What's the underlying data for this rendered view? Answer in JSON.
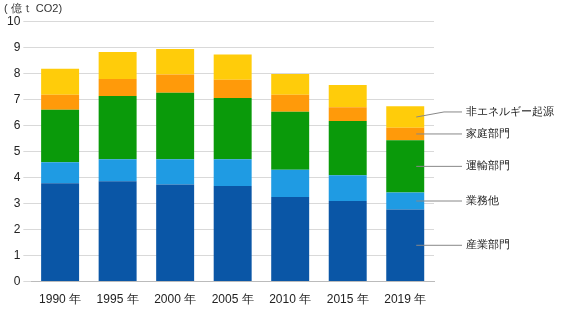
{
  "chart_data": {
    "type": "bar",
    "stacked": true,
    "grid": true,
    "y_label": "( 億ｔ CO2)",
    "categories": [
      "1990 年",
      "1995 年",
      "2000 年",
      "2005 年",
      "2010 年",
      "2015 年",
      "2019 年"
    ],
    "ylim": [
      0,
      10
    ],
    "yticks": [
      0,
      1,
      2,
      3,
      4,
      5,
      6,
      7,
      8,
      9,
      10
    ],
    "series": [
      {
        "name": "産業部門",
        "color": "#0a56a6",
        "values": [
          3.78,
          3.85,
          3.73,
          3.67,
          3.25,
          3.1,
          2.77
        ]
      },
      {
        "name": "業務他",
        "color": "#1f9be3",
        "values": [
          0.8,
          0.85,
          0.97,
          1.03,
          1.05,
          0.98,
          0.65
        ]
      },
      {
        "name": "運輸部門",
        "color": "#0a9a0a",
        "values": [
          2.02,
          2.43,
          2.55,
          2.35,
          2.22,
          2.09,
          2.01
        ]
      },
      {
        "name": "家庭部門",
        "color": "#ff9a0a",
        "values": [
          0.58,
          0.65,
          0.7,
          0.7,
          0.66,
          0.53,
          0.48
        ]
      },
      {
        "name": "非エネルギー起源",
        "color": "#ffcc0a",
        "values": [
          0.99,
          1.04,
          0.98,
          0.97,
          0.79,
          0.85,
          0.82
        ]
      }
    ]
  }
}
